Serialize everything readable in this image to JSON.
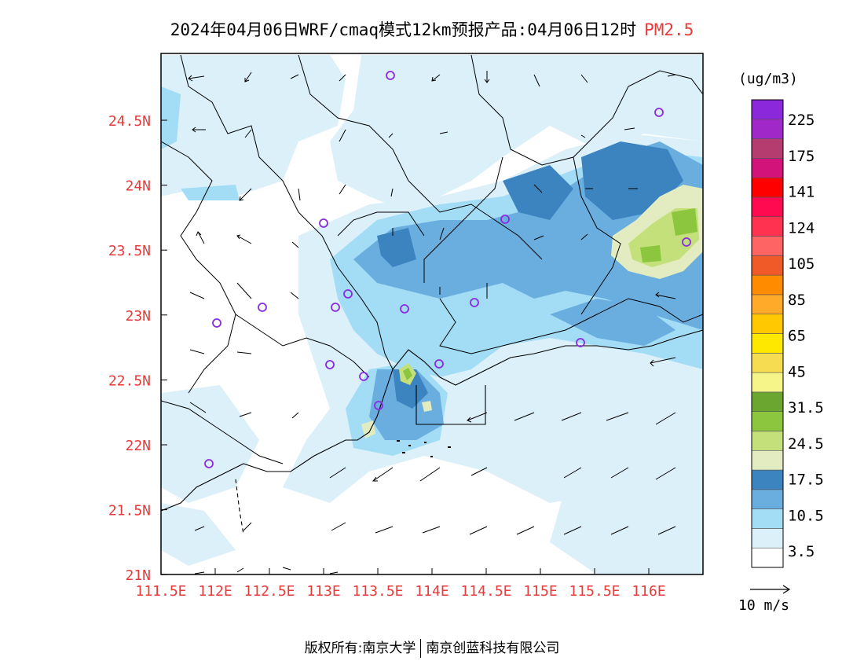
{
  "title": {
    "main": "2024年04月06日WRF/cmaq模式12km预报产品:04月06日12时",
    "variable": "PM2.5"
  },
  "map": {
    "lat_labels": [
      "24.5N",
      "24N",
      "23.5N",
      "23N",
      "22.5N",
      "22N",
      "21.5N",
      "21N"
    ],
    "lon_labels": [
      "111.5E",
      "112E",
      "112.5E",
      "113E",
      "113.5E",
      "114E",
      "114.5E",
      "115E",
      "115.5E",
      "116E"
    ],
    "axis_label_color": "#e83a3a",
    "station_marker_color": "#8a2be2"
  },
  "colorbar": {
    "unit": "(ug/m3)",
    "labels": [
      "225",
      "175",
      "141",
      "124",
      "105",
      "85",
      "65",
      "45",
      "31.5",
      "24.5",
      "17.5",
      "10.5",
      "3.5"
    ],
    "colors_bottom_to_top": [
      "#ffffff",
      "#dcf0fa",
      "#a3dcf5",
      "#6aaedf",
      "#3c84c0",
      "#e2ecc0",
      "#c3e07a",
      "#8cc63f",
      "#6aa630",
      "#f5f58a",
      "#f5dc50",
      "#ffe800",
      "#ffc800",
      "#ffaa28",
      "#ff8c00",
      "#f05a28",
      "#ff6464",
      "#ff3250",
      "#ff0a50",
      "#ff0000",
      "#d2147a",
      "#b43c6e",
      "#a028c8",
      "#8c28dc"
    ]
  },
  "wind": {
    "reference_label": "10 m/s"
  },
  "footer": {
    "left": "版权所有:南京大学",
    "right": "南京创蓝科技有限公司"
  }
}
